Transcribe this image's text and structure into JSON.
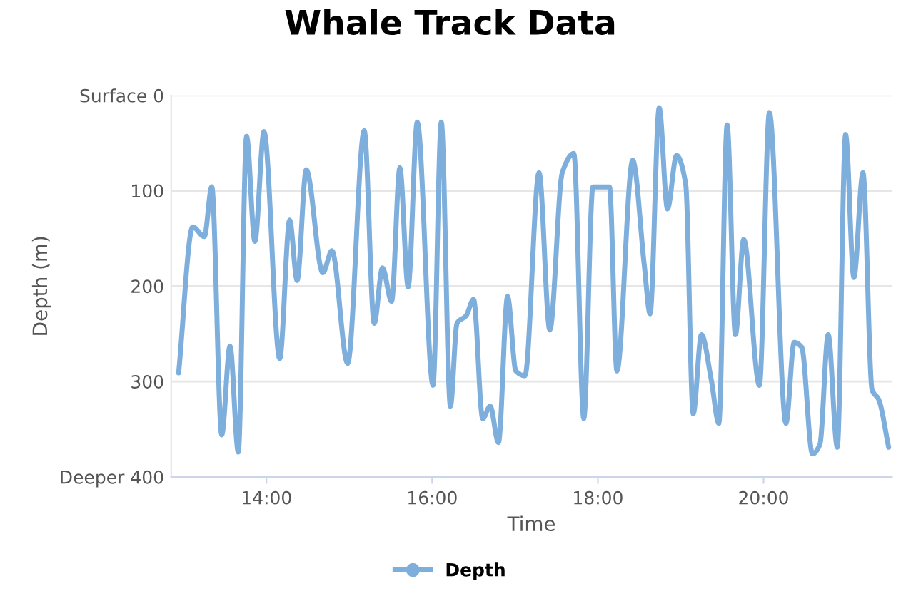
{
  "chart_data": {
    "type": "line",
    "title": "Whale Track Data",
    "xlabel": "Time",
    "ylabel": "Depth (m)",
    "x": [
      12.94,
      13.11,
      13.25,
      13.34,
      13.46,
      13.56,
      13.66,
      13.76,
      13.86,
      13.97,
      14.16,
      14.28,
      14.37,
      14.48,
      14.68,
      14.79,
      14.98,
      15.18,
      15.3,
      15.4,
      15.51,
      15.61,
      15.71,
      15.82,
      16.01,
      16.11,
      16.22,
      16.3,
      16.41,
      16.5,
      16.61,
      16.7,
      16.8,
      16.91,
      17.01,
      17.12,
      17.29,
      17.42,
      17.57,
      17.71,
      17.83,
      17.94,
      18.14,
      18.23,
      18.42,
      18.56,
      18.63,
      18.74,
      18.84,
      18.95,
      19.06,
      19.15,
      19.25,
      19.37,
      19.46,
      19.56,
      19.66,
      19.76,
      19.95,
      20.07,
      20.27,
      20.37,
      20.46,
      20.59,
      20.68,
      20.78,
      20.89,
      20.99,
      21.09,
      21.2,
      21.31,
      21.39,
      21.51
    ],
    "series": [
      {
        "name": "Depth",
        "color": "#7eaedb",
        "values": [
          291,
          138,
          148,
          96,
          356,
          263,
          374,
          43,
          153,
          38,
          276,
          131,
          194,
          78,
          186,
          163,
          281,
          37,
          239,
          181,
          216,
          76,
          201,
          28,
          304,
          28,
          326,
          239,
          231,
          214,
          339,
          326,
          364,
          211,
          289,
          294,
          81,
          246,
          81,
          61,
          339,
          96,
          96,
          289,
          68,
          178,
          229,
          13,
          119,
          63,
          93,
          334,
          251,
          299,
          344,
          31,
          251,
          151,
          304,
          18,
          344,
          259,
          264,
          376,
          366,
          251,
          369,
          41,
          191,
          81,
          309,
          319,
          369
        ]
      }
    ],
    "xlim": [
      12.85,
      21.55
    ],
    "xticks": [
      {
        "value": 14,
        "label": "14:00"
      },
      {
        "value": 16,
        "label": "16:00"
      },
      {
        "value": 18,
        "label": "18:00"
      },
      {
        "value": 20,
        "label": "20:00"
      }
    ],
    "ylim": [
      400,
      0
    ],
    "yticks": [
      {
        "value": 0,
        "label": "Surface 0"
      },
      100,
      200,
      300,
      {
        "value": 400,
        "label": "Deeper 400"
      }
    ],
    "grid": "y",
    "legend": "bottom",
    "line_style": "solid"
  }
}
